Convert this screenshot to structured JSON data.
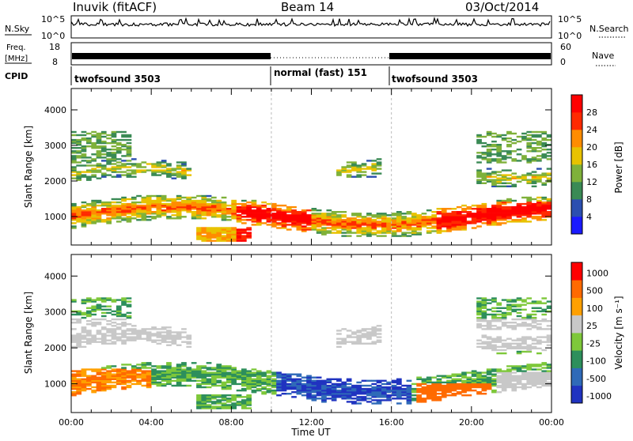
{
  "header": {
    "station": "Inuvik (fitACF)",
    "beam": "Beam 14",
    "date": "03/Oct/2014"
  },
  "status": {
    "nsky_label": "N.Sky",
    "nsky_ticks": [
      "10^5",
      "10^0"
    ],
    "nsearch_label": "N.Search",
    "nsearch_ticks": [
      "10^5",
      "10^0"
    ],
    "freq_label_1": "Freq.",
    "freq_label_2": "[MHz]",
    "freq_ticks": [
      "18",
      "8"
    ],
    "nave_label": "Nave",
    "nave_ticks": [
      "60",
      "0"
    ],
    "cpid_label": "CPID",
    "cpid_segments": [
      {
        "label": "twofsound 3503",
        "start": 0,
        "end": 10
      },
      {
        "label": "normal (fast) 151",
        "start": 10,
        "end": 16
      },
      {
        "label": "twofsound 3503",
        "start": 16,
        "end": 24
      }
    ]
  },
  "chart_data": [
    {
      "type": "heatmap",
      "panel": "power",
      "x_label": "Time UT",
      "x_ticks": [
        "00:00",
        "04:00",
        "08:00",
        "12:00",
        "16:00",
        "20:00",
        "00:00"
      ],
      "xlim": [
        0,
        24
      ],
      "ylabel": "Slant Range [km]",
      "y_ticks": [
        "1000",
        "2000",
        "3000",
        "4000"
      ],
      "y_tick_values": [
        1000,
        2000,
        3000,
        4000
      ],
      "ylim": [
        200,
        4600
      ],
      "colorbar_label": "Power [dB]",
      "colorbar_ticks": [
        "4",
        "8",
        "12",
        "16",
        "20",
        "24",
        "28"
      ],
      "colorbar_range": [
        0,
        32
      ],
      "colors": [
        "#1a1aff",
        "#2b4fb0",
        "#3a8a55",
        "#7fb13a",
        "#e8c200",
        "#ff8c00",
        "#ff2a00",
        "#ff0000"
      ]
    },
    {
      "type": "heatmap",
      "panel": "velocity",
      "x_label": "Time UT",
      "x_ticks": [
        "00:00",
        "04:00",
        "08:00",
        "12:00",
        "16:00",
        "20:00",
        "00:00"
      ],
      "xlim": [
        0,
        24
      ],
      "ylabel": "Slant Range [km]",
      "y_ticks": [
        "1000",
        "2000",
        "3000",
        "4000"
      ],
      "y_tick_values": [
        1000,
        2000,
        3000,
        4000
      ],
      "ylim": [
        200,
        4600
      ],
      "colorbar_label": "Velocity [m s⁻¹]",
      "colorbar_ticks": [
        "1000",
        "500",
        "100",
        "25",
        "-25",
        "-100",
        "-500",
        "-1000"
      ],
      "colors": [
        "#2033c0",
        "#2f6ab8",
        "#2d8f5c",
        "#7ec83a",
        "#c8c8c8",
        "#ffa000",
        "#ff6a00",
        "#ff0000"
      ]
    }
  ]
}
